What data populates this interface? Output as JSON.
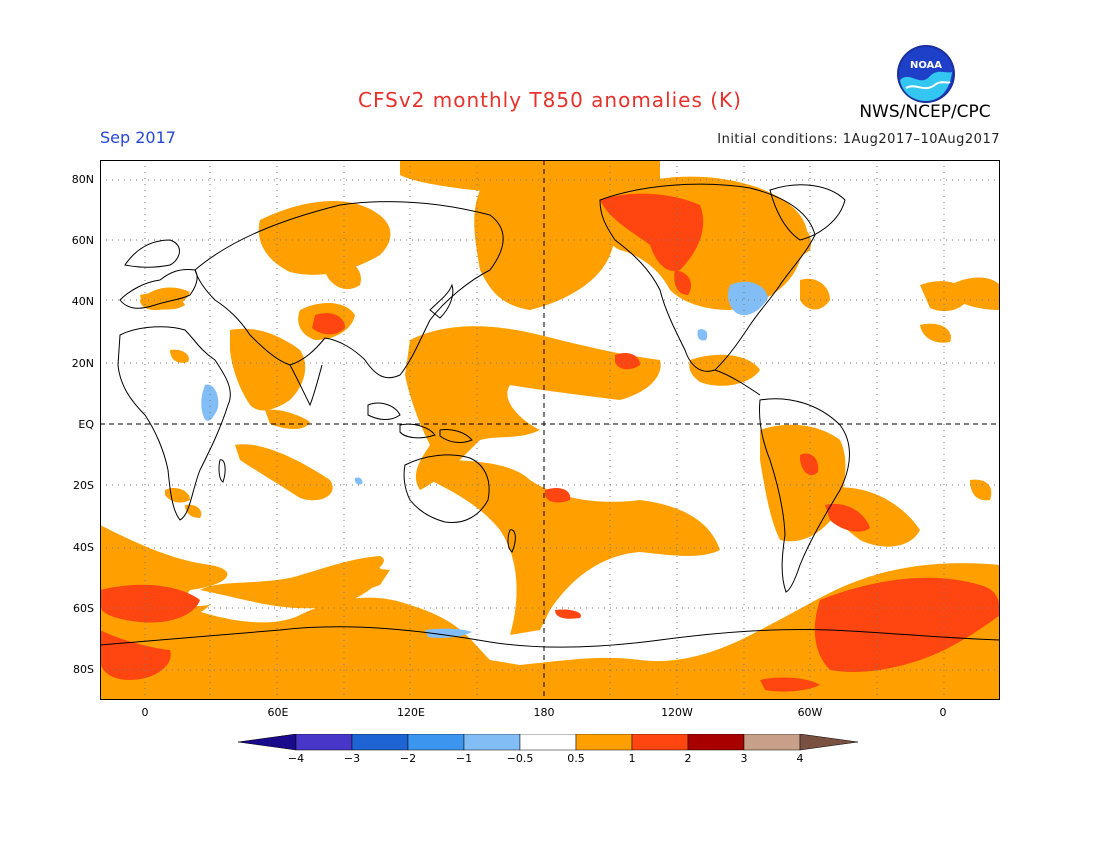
{
  "header": {
    "title": "CFSv2 monthly T850 anomalies (K)",
    "month": "Sep 2017",
    "initial_conditions": "Initial conditions: 1Aug2017–10Aug2017",
    "org": "NWS/NCEP/CPC",
    "logo_text": "NOAA"
  },
  "map": {
    "lat_labels": [
      "80N",
      "60N",
      "40N",
      "20N",
      "EQ",
      "20S",
      "40S",
      "60S",
      "80S"
    ],
    "lon_labels": [
      "0",
      "60E",
      "120E",
      "180",
      "120W",
      "60W",
      "0"
    ]
  },
  "colorbar": {
    "labels": [
      "−4",
      "−3",
      "−2",
      "−1",
      "−0.5",
      "0.5",
      "1",
      "2",
      "3",
      "4"
    ],
    "colors": [
      "#1a0a8c",
      "#4836c8",
      "#1e64d2",
      "#3c96f0",
      "#82bef5",
      "#ffffff",
      "#ffa000",
      "#ff4610",
      "#a80000",
      "#c8a08a",
      "#7a5040"
    ]
  }
}
